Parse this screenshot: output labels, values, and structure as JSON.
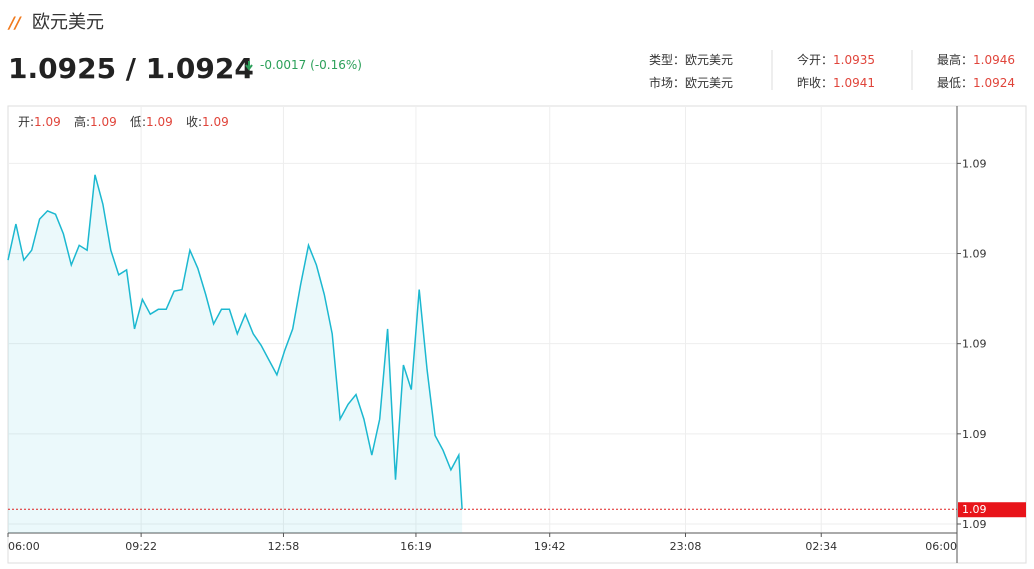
{
  "header": {
    "title": "欧元美元",
    "price": "1.0925 / 1.0924",
    "change": "-0.0017 (-0.16%)"
  },
  "info": [
    {
      "label": "类型：",
      "value": "欧元美元"
    },
    {
      "label": "市场：",
      "value": "欧元美元"
    },
    {
      "label": "今开：",
      "value": "1.0935"
    },
    {
      "label": "昨收：",
      "value": "1.0941"
    },
    {
      "label": "最高：",
      "value": "1.0946"
    },
    {
      "label": "最低：",
      "value": "1.0924"
    }
  ],
  "ohlc": [
    {
      "label": "开:",
      "value": "1.09"
    },
    {
      "label": "高:",
      "value": "1.09"
    },
    {
      "label": "低:",
      "value": "1.09"
    },
    {
      "label": "收:",
      "value": "1.09"
    }
  ],
  "chart_data": {
    "type": "line",
    "x": [
      0,
      12,
      24,
      36,
      48,
      60,
      72,
      84,
      96,
      108,
      120,
      132,
      144,
      156,
      168,
      180,
      192,
      204,
      216,
      228,
      240,
      252,
      264,
      276,
      288,
      300,
      312,
      324,
      336,
      348,
      360,
      372,
      384,
      396,
      408,
      420,
      432,
      444,
      456,
      468,
      480,
      492,
      504,
      516,
      528,
      540,
      552,
      564,
      576,
      588,
      600,
      612,
      624,
      636,
      648,
      660,
      672,
      684,
      689
    ],
    "series": [
      {
        "name": "欧元美元",
        "color": "#1cb8d0",
        "values": [
          1.09401,
          1.09423,
          1.09401,
          1.09407,
          1.09426,
          1.09431,
          1.09429,
          1.09417,
          1.09398,
          1.0941,
          1.09407,
          1.09453,
          1.09435,
          1.09407,
          1.09392,
          1.09395,
          1.09359,
          1.09377,
          1.09368,
          1.09371,
          1.09371,
          1.09382,
          1.09383,
          1.09407,
          1.09396,
          1.0938,
          1.09362,
          1.09371,
          1.09371,
          1.09356,
          1.09368,
          1.09356,
          1.09349,
          1.0934,
          1.09331,
          1.09346,
          1.09359,
          1.09386,
          1.0941,
          1.09398,
          1.0938,
          1.09356,
          1.09304,
          1.09313,
          1.09319,
          1.09304,
          1.09282,
          1.09304,
          1.09359,
          1.09267,
          1.09337,
          1.09322,
          1.09383,
          1.09334,
          1.09294,
          1.09285,
          1.09273,
          1.09282,
          1.09249
        ]
      }
    ],
    "current": {
      "value": 1.09249,
      "label": "1.09"
    },
    "xlim": [
      0,
      1440
    ],
    "xticks": [
      {
        "value": 0,
        "label": "06:00"
      },
      {
        "value": 202,
        "label": "09:22"
      },
      {
        "value": 418,
        "label": "12:58"
      },
      {
        "value": 619,
        "label": "16:19"
      },
      {
        "value": 822,
        "label": "19:42"
      },
      {
        "value": 1028,
        "label": "23:08"
      },
      {
        "value": 1234,
        "label": "02:34"
      },
      {
        "value": 1440,
        "label": "06:00"
      }
    ],
    "ylim": [
      1.092345,
      1.09495
    ],
    "yticks": [
      {
        "value": 1.0924,
        "label": "1.09"
      },
      {
        "value": 1.09295,
        "label": "1.09"
      },
      {
        "value": 1.0935,
        "label": "1.09"
      },
      {
        "value": 1.09405,
        "label": "1.09"
      },
      {
        "value": 1.0946,
        "label": "1.09"
      }
    ],
    "grid": true
  }
}
